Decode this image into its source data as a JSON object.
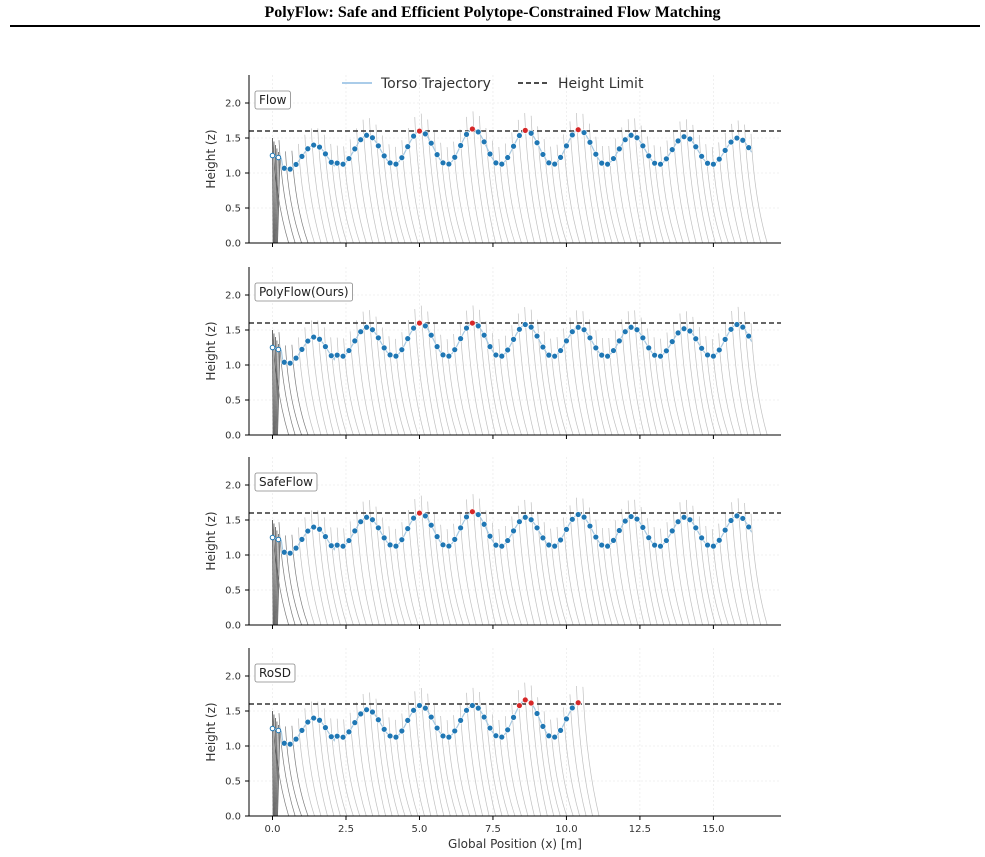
{
  "page_title": "PolyFlow: Safe and Efficient Polytope-Constrained Flow Matching",
  "legend": {
    "placement": "top-center",
    "entries": [
      "Torso Trajectory",
      "Height Limit"
    ]
  },
  "colors": {
    "torso_trajectory": "#a6c8e0",
    "height_limit": "#333333",
    "point_safe": "#1f77b4",
    "point_violation": "#d62728",
    "leg_lines": "#b5b5b5",
    "legend_flow": "#9ec4e6"
  },
  "chart_data": [
    {
      "type": "scatter",
      "title": "Flow",
      "ylabel": "Height (z)",
      "xlabel": "",
      "xlim": [
        -0.8,
        17.3
      ],
      "ylim": [
        0,
        2.4
      ],
      "x_ticks": [
        "0.0",
        "2.5",
        "5.0",
        "7.5",
        "10.0",
        "12.5",
        "15.0"
      ],
      "y_ticks": [
        "0.0",
        "0.5",
        "1.0",
        "1.5",
        "2.0"
      ],
      "height_limit": 1.6,
      "grid": true,
      "x_end": 16.3,
      "violation_peaks_x": [
        6.6,
        8.4,
        10.2
      ],
      "series": [
        {
          "name": "Torso Trajectory",
          "x": [
            0.0,
            16.3
          ],
          "period": 1.8,
          "dip_min": 1.05,
          "peak_heights": [
            1.4,
            1.54,
            1.6,
            1.63,
            1.61,
            1.62,
            1.54,
            1.52,
            1.5,
            1.48
          ]
        }
      ]
    },
    {
      "type": "scatter",
      "title": "PolyFlow(Ours)",
      "ylabel": "Height (z)",
      "xlabel": "",
      "xlim": [
        -0.8,
        17.3
      ],
      "ylim": [
        0,
        2.4
      ],
      "x_ticks": [
        "0.0",
        "2.5",
        "5.0",
        "7.5",
        "10.0",
        "12.5",
        "15.0"
      ],
      "y_ticks": [
        "0.0",
        "0.5",
        "1.0",
        "1.5",
        "2.0"
      ],
      "height_limit": 1.6,
      "grid": true,
      "x_end": 16.3,
      "violation_peaks_x": [
        4.7,
        6.6,
        8.2
      ],
      "series": [
        {
          "name": "Torso Trajectory",
          "x": [
            0.0,
            16.3
          ],
          "period": 1.8,
          "dip_min": 1.02,
          "peak_heights": [
            1.4,
            1.54,
            1.6,
            1.6,
            1.58,
            1.54,
            1.54,
            1.52,
            1.58,
            1.58
          ]
        }
      ]
    },
    {
      "type": "scatter",
      "title": "SafeFlow",
      "ylabel": "Height (z)",
      "xlabel": "",
      "xlim": [
        -0.8,
        17.3
      ],
      "ylim": [
        0,
        2.4
      ],
      "x_ticks": [
        "0.0",
        "2.5",
        "5.0",
        "7.5",
        "10.0",
        "12.5",
        "15.0"
      ],
      "y_ticks": [
        "0.0",
        "0.5",
        "1.0",
        "1.5",
        "2.0"
      ],
      "height_limit": 1.6,
      "grid": true,
      "x_end": 16.3,
      "violation_peaks_x": [
        4.7,
        6.5
      ],
      "series": [
        {
          "name": "Torso Trajectory",
          "x": [
            0.0,
            16.3
          ],
          "period": 1.8,
          "dip_min": 1.02,
          "peak_heights": [
            1.4,
            1.54,
            1.6,
            1.62,
            1.54,
            1.58,
            1.55,
            1.54,
            1.56,
            1.54
          ]
        }
      ]
    },
    {
      "type": "scatter",
      "title": "RoSD",
      "ylabel": "Height (z)",
      "xlabel": "Global Position (x) [m]",
      "xlim": [
        -0.8,
        17.3
      ],
      "ylim": [
        0,
        2.4
      ],
      "x_ticks": [
        "0.0",
        "2.5",
        "5.0",
        "7.5",
        "10.0",
        "12.5",
        "15.0"
      ],
      "y_ticks": [
        "0.0",
        "0.5",
        "1.0",
        "1.5",
        "2.0"
      ],
      "height_limit": 1.6,
      "grid": true,
      "x_end": 10.5,
      "violation_peaks_x": [
        8.3,
        9.8
      ],
      "series": [
        {
          "name": "Torso Trajectory",
          "x": [
            0.0,
            10.5
          ],
          "period": 1.8,
          "dip_min": 1.02,
          "peak_heights": [
            1.4,
            1.52,
            1.58,
            1.58,
            1.66,
            1.62
          ]
        }
      ]
    }
  ]
}
